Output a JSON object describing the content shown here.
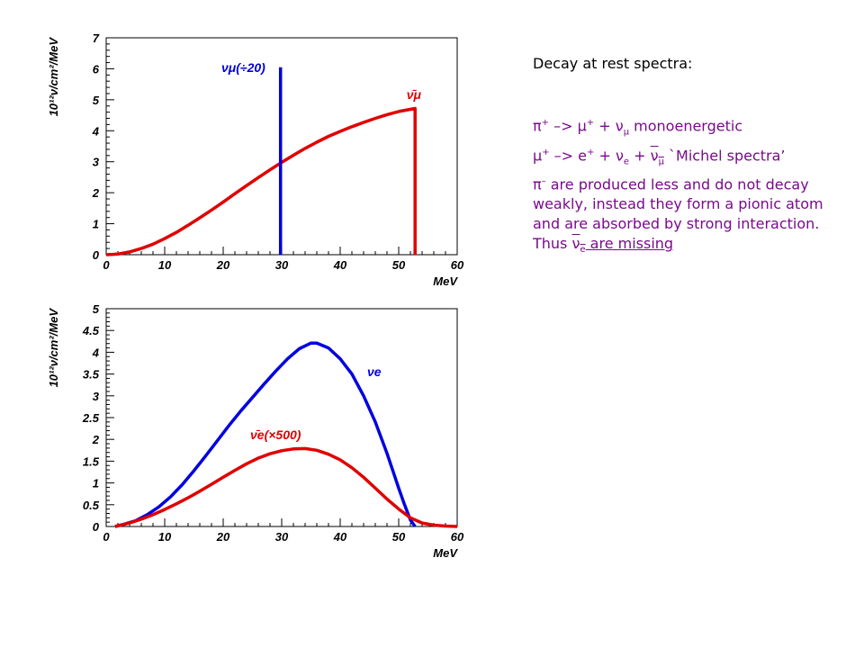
{
  "notes": {
    "title": "Decay at rest spectra:",
    "line1_a": "π",
    "line1_b": "+",
    "line1_c": " –> μ",
    "line1_d": "+",
    "line1_e": " + ν",
    "line1_f": "μ",
    "line1_g": " monoenergetic",
    "line2_a": "μ",
    "line2_b": "+",
    "line2_c": " –> e",
    "line2_d": "+",
    "line2_e": " + ν",
    "line2_f": "e",
    "line2_g": " + ",
    "line2_h": "ν",
    "line2_i": "μ",
    "line2_j": "  `Michel spectra’",
    "line3_a": "π",
    "line3_b": "–",
    "line3_c": " are produced less and do not decay weakly, instead they form a pionic atom and are absorbed by strong interaction.",
    "line4_a": "Thus ",
    "line4_b": "ν",
    "line4_c": "e",
    "line4_d": " are missing"
  },
  "chart_data": [
    {
      "type": "line",
      "xlabel": "MeV",
      "ylabel": "10¹²ν/cm²/MeV",
      "xlim": [
        0,
        60
      ],
      "ylim": [
        0,
        7
      ],
      "xticks": [
        "0",
        "10",
        "20",
        "30",
        "40",
        "50",
        "60"
      ],
      "yticks": [
        "0",
        "1",
        "2",
        "3",
        "4",
        "5",
        "6",
        "7"
      ],
      "series": [
        {
          "name": "ν̄μ",
          "color": "#e00000",
          "x": [
            0,
            2,
            4,
            6,
            8,
            10,
            12,
            14,
            16,
            18,
            20,
            22,
            24,
            26,
            28,
            30,
            32,
            34,
            36,
            38,
            40,
            42,
            44,
            46,
            48,
            50,
            52.8,
            52.8
          ],
          "y": [
            0,
            0.02,
            0.09,
            0.2,
            0.34,
            0.52,
            0.72,
            0.95,
            1.19,
            1.44,
            1.7,
            1.97,
            2.23,
            2.49,
            2.74,
            2.98,
            3.21,
            3.43,
            3.63,
            3.82,
            3.98,
            4.13,
            4.27,
            4.4,
            4.52,
            4.62,
            4.72,
            0
          ]
        },
        {
          "name": "νμ(÷20)",
          "color": "#0000e0",
          "x": [
            29.8,
            29.8
          ],
          "y": [
            0,
            6.05
          ]
        }
      ]
    },
    {
      "type": "line",
      "xlabel": "MeV",
      "ylabel": "10¹²ν/cm²/MeV",
      "xlim": [
        0,
        60
      ],
      "ylim": [
        0,
        5
      ],
      "xticks": [
        "0",
        "10",
        "20",
        "30",
        "40",
        "50",
        "60"
      ],
      "yticks": [
        "0",
        "0.5",
        "1",
        "1.5",
        "2",
        "2.5",
        "3",
        "3.5",
        "4",
        "4.5",
        "5"
      ],
      "series": [
        {
          "name": "νe",
          "color": "#0000e0",
          "x": [
            1.5,
            3,
            5,
            7,
            9,
            11,
            13,
            15,
            17,
            19,
            21,
            23,
            25,
            27,
            29,
            31,
            33,
            35,
            36,
            38,
            40,
            42,
            44,
            46,
            48,
            49,
            50,
            51,
            52,
            52.8
          ],
          "y": [
            0,
            0.05,
            0.13,
            0.27,
            0.45,
            0.68,
            0.96,
            1.28,
            1.62,
            1.97,
            2.32,
            2.65,
            2.96,
            3.27,
            3.57,
            3.85,
            4.08,
            4.21,
            4.21,
            4.1,
            3.85,
            3.5,
            3.0,
            2.4,
            1.68,
            1.28,
            0.88,
            0.5,
            0.15,
            0
          ]
        },
        {
          "name": "ν̄e(×500)",
          "color": "#e00000",
          "x": [
            1.5,
            4,
            6,
            8,
            10,
            12,
            14,
            16,
            18,
            20,
            22,
            24,
            26,
            28,
            30,
            32,
            34,
            36,
            38,
            40,
            42,
            44,
            46,
            48,
            50,
            52,
            54,
            56,
            58,
            60
          ],
          "y": [
            0,
            0.08,
            0.17,
            0.27,
            0.39,
            0.52,
            0.66,
            0.81,
            0.97,
            1.13,
            1.29,
            1.44,
            1.57,
            1.67,
            1.74,
            1.78,
            1.79,
            1.75,
            1.66,
            1.53,
            1.35,
            1.13,
            0.88,
            0.63,
            0.4,
            0.2,
            0.08,
            0.03,
            0.01,
            0
          ]
        }
      ]
    }
  ]
}
